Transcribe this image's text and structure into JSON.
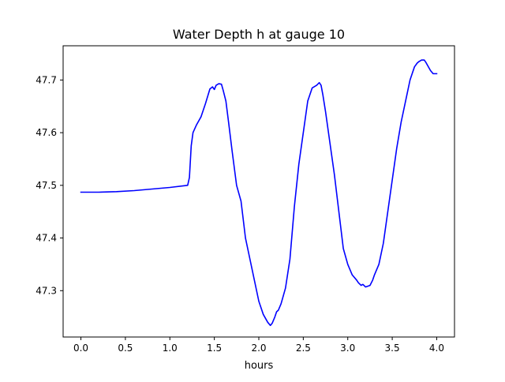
{
  "chart_data": {
    "type": "line",
    "title": "Water Depth h at gauge 10",
    "xlabel": "hours",
    "ylabel": "",
    "xlim": [
      -0.2,
      4.2
    ],
    "ylim": [
      47.212,
      47.765
    ],
    "xticks": [
      0.0,
      0.5,
      1.0,
      1.5,
      2.0,
      2.5,
      3.0,
      3.5,
      4.0
    ],
    "xtick_labels": [
      "0.0",
      "0.5",
      "1.0",
      "1.5",
      "2.0",
      "2.5",
      "3.0",
      "3.5",
      "4.0"
    ],
    "yticks": [
      47.3,
      47.4,
      47.5,
      47.6,
      47.7
    ],
    "ytick_labels": [
      "47.3",
      "47.4",
      "47.5",
      "47.6",
      "47.7"
    ],
    "grid": false,
    "series": [
      {
        "color": "#0000ff",
        "x": [
          0.0,
          0.2,
          0.4,
          0.6,
          0.8,
          1.0,
          1.2,
          1.22,
          1.24,
          1.26,
          1.3,
          1.35,
          1.4,
          1.45,
          1.48,
          1.5,
          1.52,
          1.55,
          1.58,
          1.6,
          1.63,
          1.66,
          1.7,
          1.75,
          1.8,
          1.85,
          1.9,
          1.95,
          2.0,
          2.05,
          2.1,
          2.13,
          2.15,
          2.18,
          2.2,
          2.22,
          2.25,
          2.3,
          2.35,
          2.4,
          2.45,
          2.5,
          2.55,
          2.6,
          2.65,
          2.68,
          2.7,
          2.72,
          2.75,
          2.8,
          2.85,
          2.9,
          2.95,
          3.0,
          3.05,
          3.1,
          3.12,
          3.15,
          3.17,
          3.2,
          3.25,
          3.28,
          3.3,
          3.35,
          3.4,
          3.45,
          3.5,
          3.55,
          3.6,
          3.65,
          3.7,
          3.75,
          3.78,
          3.8,
          3.83,
          3.86,
          3.88,
          3.9,
          3.93,
          3.96,
          4.0
        ],
        "y": [
          47.487,
          47.487,
          47.488,
          47.49,
          47.493,
          47.496,
          47.5,
          47.515,
          47.575,
          47.6,
          47.615,
          47.63,
          47.655,
          47.683,
          47.687,
          47.682,
          47.69,
          47.693,
          47.692,
          47.68,
          47.66,
          47.62,
          47.565,
          47.5,
          47.47,
          47.4,
          47.36,
          47.32,
          47.28,
          47.255,
          47.24,
          47.234,
          47.238,
          47.25,
          47.26,
          47.263,
          47.275,
          47.305,
          47.36,
          47.46,
          47.54,
          47.6,
          47.66,
          47.685,
          47.69,
          47.695,
          47.69,
          47.672,
          47.64,
          47.58,
          47.52,
          47.45,
          47.38,
          47.35,
          47.33,
          47.32,
          47.315,
          47.31,
          47.312,
          47.307,
          47.31,
          47.32,
          47.33,
          47.35,
          47.39,
          47.45,
          47.51,
          47.57,
          47.62,
          47.66,
          47.7,
          47.725,
          47.732,
          47.735,
          47.738,
          47.738,
          47.733,
          47.727,
          47.718,
          47.712,
          47.712
        ]
      }
    ]
  }
}
